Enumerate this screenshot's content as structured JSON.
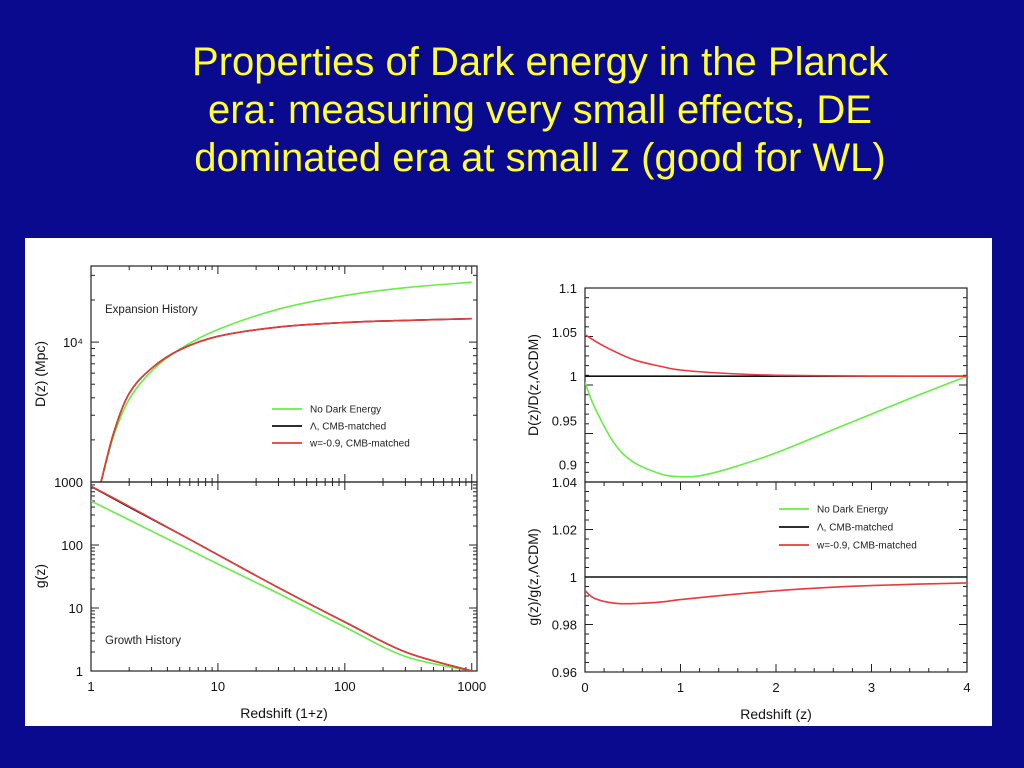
{
  "slide": {
    "title_lines": [
      "Properties of Dark energy in the Planck",
      "era: measuring very small effects, DE",
      "dominated era at small z (good for WL)"
    ],
    "background": "#0a0a8e",
    "title_color": "#ffff33"
  },
  "series_colors": {
    "No Dark Energy": "#66ee44",
    "Λ, CMB-matched": "#111111",
    "w=-0.9, CMB-matched": "#e83a3a"
  },
  "chart_data": [
    {
      "panel": "left-top",
      "type": "line",
      "annotation": "Expansion History",
      "ylabel": "D(z) (Mpc)",
      "xscale": "log",
      "yscale": "log",
      "xlim": [
        1,
        1100
      ],
      "ylim": [
        1000,
        35000
      ],
      "yticks": [
        {
          "value": 1000,
          "label": "1000"
        },
        {
          "value": 10000,
          "label": "10⁴"
        }
      ],
      "legend": [
        "No Dark Energy",
        "Λ, CMB-matched",
        "w=-0.9, CMB-matched"
      ],
      "legend_position": "lower-right",
      "series": [
        {
          "name": "No Dark Energy",
          "x": [
            1.2,
            1.5,
            2,
            3,
            5,
            10,
            30,
            100,
            300,
            1000
          ],
          "values": [
            1000,
            2100,
            3900,
            6200,
            8900,
            12300,
            17200,
            21500,
            24500,
            26800
          ]
        },
        {
          "name": "Λ, CMB-matched",
          "x": [
            1.2,
            1.5,
            2,
            3,
            5,
            10,
            30,
            100,
            300,
            1000
          ],
          "values": [
            1000,
            2200,
            4300,
            6500,
            8800,
            11000,
            12800,
            13800,
            14300,
            14700
          ]
        },
        {
          "name": "w=-0.9, CMB-matched",
          "x": [
            1.2,
            1.5,
            2,
            3,
            5,
            10,
            30,
            100,
            300,
            1000
          ],
          "values": [
            1000,
            2200,
            4300,
            6500,
            8800,
            11000,
            12800,
            13800,
            14300,
            14700
          ]
        }
      ]
    },
    {
      "panel": "left-bottom",
      "type": "line",
      "annotation": "Growth History",
      "xlabel": "Redshift (1+z)",
      "ylabel": "g(z)",
      "xscale": "log",
      "yscale": "log",
      "xlim": [
        1,
        1100
      ],
      "ylim": [
        1,
        1000
      ],
      "xticks": [
        "1",
        "10",
        "100",
        "1000"
      ],
      "yticks": [
        "1",
        "10",
        "100",
        "1000"
      ],
      "series": [
        {
          "name": "No Dark Energy",
          "x": [
            1,
            2,
            5,
            10,
            30,
            100,
            300,
            1000
          ],
          "values": [
            500,
            250,
            100,
            50,
            17,
            5,
            1.7,
            1
          ]
        },
        {
          "name": "Λ, CMB-matched",
          "x": [
            1,
            2,
            5,
            10,
            30,
            100,
            300,
            1000
          ],
          "values": [
            850,
            400,
            150,
            70,
            21,
            6,
            2,
            1
          ]
        },
        {
          "name": "w=-0.9, CMB-matched",
          "x": [
            1,
            2,
            5,
            10,
            30,
            100,
            300,
            1000
          ],
          "values": [
            860,
            410,
            150,
            70,
            21,
            6,
            2,
            1
          ]
        }
      ]
    },
    {
      "panel": "right-top",
      "type": "line",
      "ylabel": "D(z)/D(z,ΛCDM)",
      "xlim": [
        0,
        4
      ],
      "ylim": [
        0.88,
        1.1
      ],
      "yticks": [
        "0.9",
        "0.95",
        "1",
        "1.05",
        "1.1"
      ],
      "series": [
        {
          "name": "No Dark Energy",
          "x": [
            0,
            0.1,
            0.3,
            0.5,
            0.8,
            1.0,
            1.2,
            1.5,
            2.0,
            2.5,
            3.0,
            3.5,
            4.0
          ],
          "values": [
            0.993,
            0.965,
            0.925,
            0.903,
            0.889,
            0.886,
            0.887,
            0.895,
            0.913,
            0.935,
            0.957,
            0.979,
            1.0
          ]
        },
        {
          "name": "Λ, CMB-matched",
          "x": [
            0,
            4
          ],
          "values": [
            1.0,
            1.0
          ]
        },
        {
          "name": "w=-0.9, CMB-matched",
          "x": [
            0,
            0.2,
            0.5,
            0.8,
            1.0,
            1.5,
            2.0,
            3.0,
            4.0
          ],
          "values": [
            1.047,
            1.034,
            1.019,
            1.011,
            1.007,
            1.003,
            1.001,
            1.0,
            1.0
          ]
        }
      ]
    },
    {
      "panel": "right-bottom",
      "type": "line",
      "xlabel": "Redshift (z)",
      "ylabel": "g(z)/g(z,ΛCDM)",
      "xlim": [
        0,
        4
      ],
      "ylim": [
        0.96,
        1.04
      ],
      "xticks": [
        "0",
        "1",
        "2",
        "3",
        "4"
      ],
      "yticks": [
        "0.96",
        "0.98",
        "1",
        "1.02",
        "1.04"
      ],
      "legend": [
        "No Dark Energy",
        "Λ, CMB-matched",
        "w=-0.9, CMB-matched"
      ],
      "legend_position": "upper-right",
      "series": [
        {
          "name": "Λ, CMB-matched",
          "x": [
            0,
            4
          ],
          "values": [
            1.0,
            1.0
          ]
        },
        {
          "name": "w=-0.9, CMB-matched",
          "x": [
            0,
            0.1,
            0.3,
            0.5,
            0.8,
            1.0,
            1.5,
            2.0,
            2.5,
            3.0,
            3.5,
            4.0
          ],
          "values": [
            0.9943,
            0.991,
            0.989,
            0.9888,
            0.9895,
            0.9905,
            0.9925,
            0.9942,
            0.9955,
            0.9964,
            0.997,
            0.9975
          ]
        }
      ]
    }
  ]
}
